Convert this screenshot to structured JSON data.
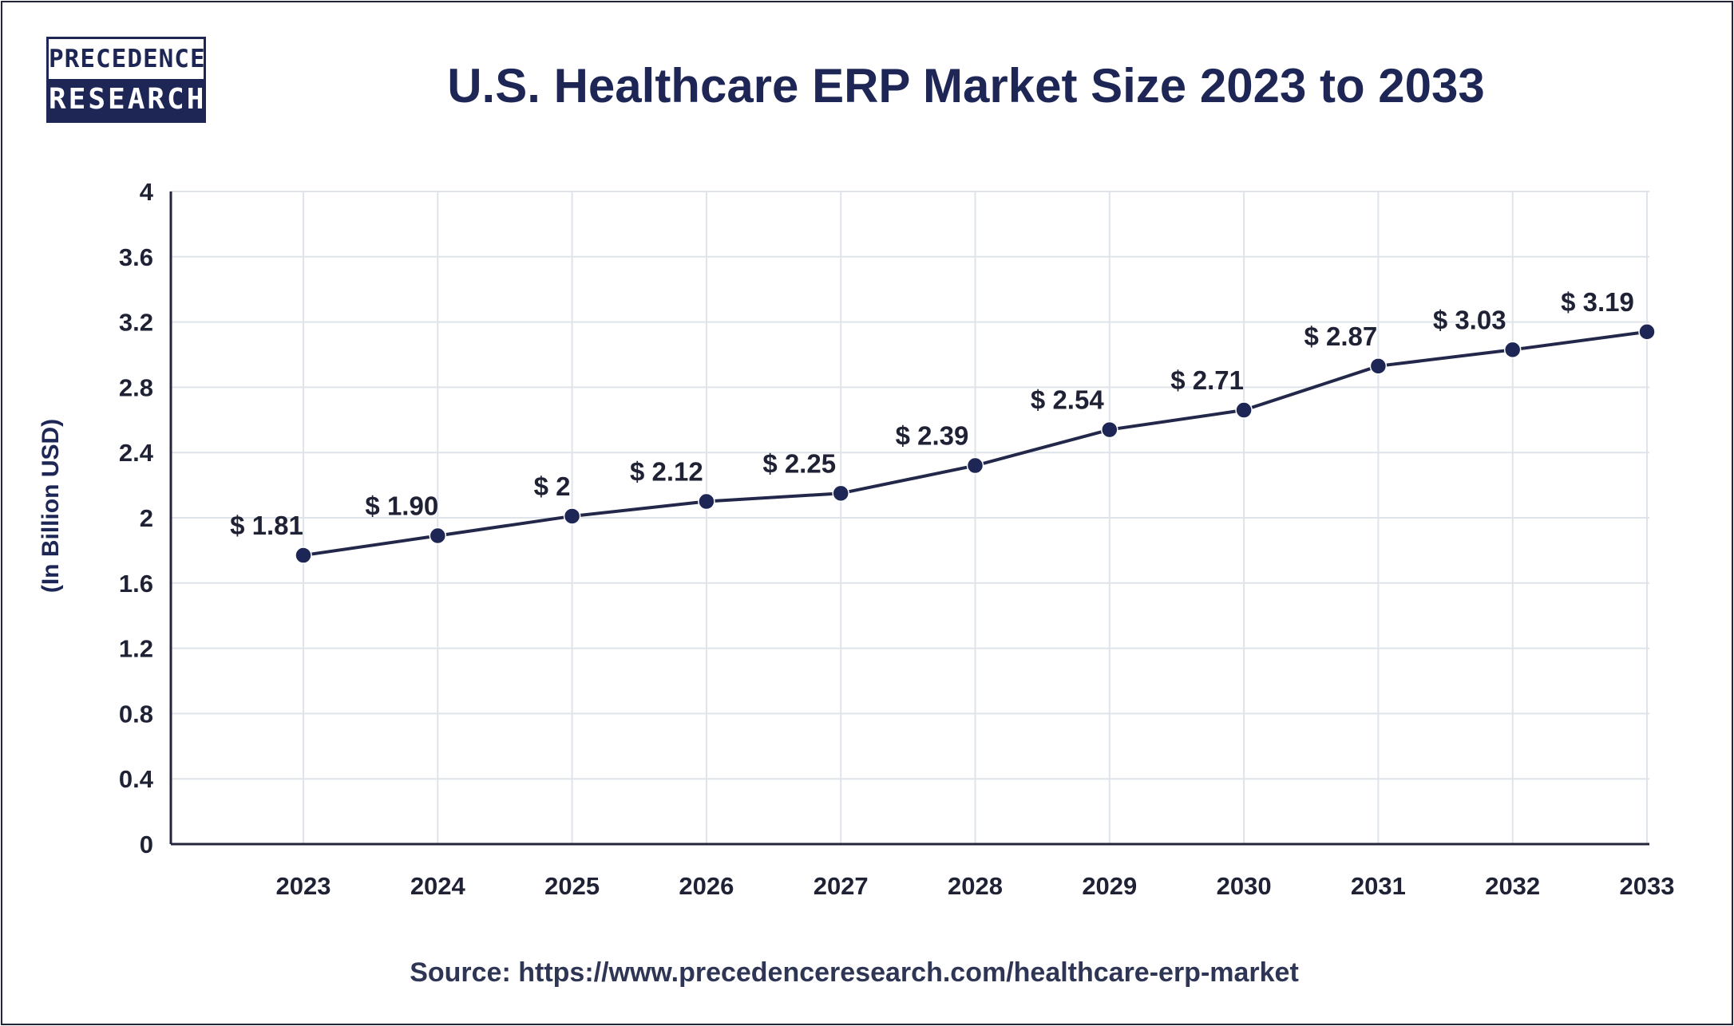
{
  "logo": {
    "top": "PRECEDENCE",
    "bottom": "RESEARCH"
  },
  "source_text": "Source: https://www.precedenceresearch.com/healthcare-erp-market",
  "chart_data": {
    "type": "line",
    "title": "U.S. Healthcare ERP Market Size 2023 to 2033",
    "xlabel": "",
    "ylabel": "(In Billion USD)",
    "categories": [
      "2023",
      "2024",
      "2025",
      "2026",
      "2027",
      "2028",
      "2029",
      "2030",
      "2031",
      "2032",
      "2033"
    ],
    "series": [
      {
        "name": "U.S. Healthcare ERP Market Size",
        "values": [
          1.81,
          1.9,
          2.0,
          2.12,
          2.25,
          2.39,
          2.54,
          2.71,
          2.87,
          3.03,
          3.19
        ],
        "labels": [
          "$ 1.81",
          "$ 1.90",
          "$ 2",
          "$ 2.12",
          "$ 2.25",
          "$ 2.39",
          "$ 2.54",
          "$ 2.71",
          "$ 2.87",
          "$ 3.03",
          "$ 3.19"
        ],
        "plotted_values": [
          1.77,
          1.89,
          2.01,
          2.1,
          2.15,
          2.32,
          2.54,
          2.66,
          2.93,
          3.03,
          3.14
        ]
      }
    ],
    "ylim": [
      0,
      4
    ],
    "yticks": [
      "0",
      "0.4",
      "0.8",
      "1.2",
      "1.6",
      "2",
      "2.4",
      "2.8",
      "3.2",
      "3.6",
      "4"
    ],
    "grid": true,
    "legend": "none",
    "colors": {
      "line": "#23284b",
      "marker": "#1d2655",
      "grid": "#dfe4ea",
      "axis": "#23263a",
      "title": "#1d2655"
    }
  }
}
